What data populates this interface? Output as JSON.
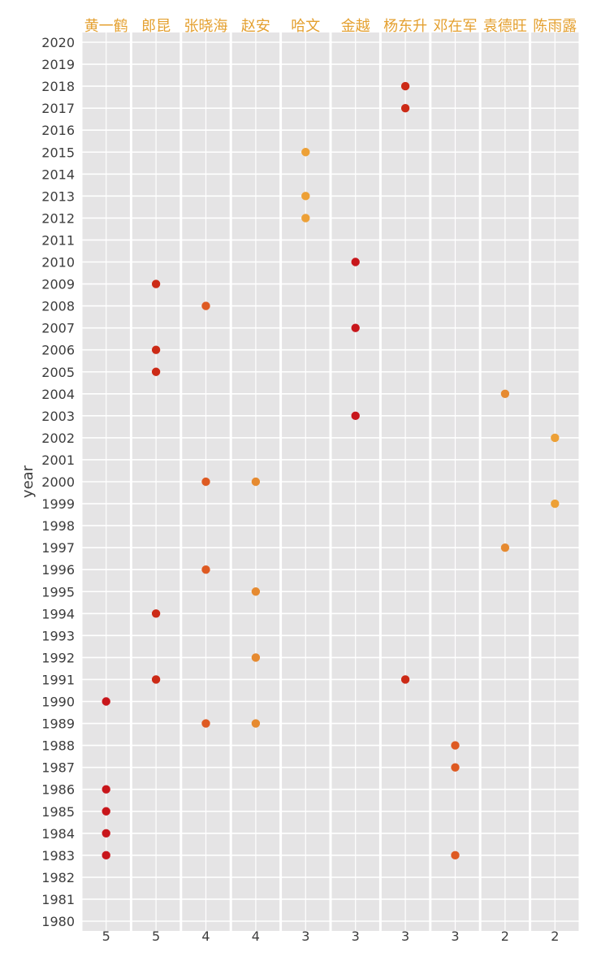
{
  "chart_data": {
    "type": "scatter",
    "ylabel": "year",
    "ylim": [
      1980,
      2020
    ],
    "y_ticks": [
      1980,
      1981,
      1982,
      1983,
      1984,
      1985,
      1986,
      1987,
      1988,
      1989,
      1990,
      1991,
      1992,
      1993,
      1994,
      1995,
      1996,
      1997,
      1998,
      1999,
      2000,
      2001,
      2002,
      2003,
      2004,
      2005,
      2006,
      2007,
      2008,
      2009,
      2010,
      2011,
      2012,
      2013,
      2014,
      2015,
      2016,
      2017,
      2018,
      2019,
      2020
    ],
    "grid": true,
    "series": [
      {
        "name": "黄一鹤",
        "count": "5",
        "color": "#c8161b",
        "years": [
          1983,
          1984,
          1985,
          1986,
          1990
        ]
      },
      {
        "name": "郎昆",
        "count": "5",
        "color": "#cc2a16",
        "years": [
          1991,
          1994,
          2005,
          2006,
          2009
        ]
      },
      {
        "name": "张晓海",
        "count": "4",
        "color": "#de5a22",
        "years": [
          1989,
          1996,
          2000,
          2008
        ]
      },
      {
        "name": "赵安",
        "count": "4",
        "color": "#e68a30",
        "years": [
          1989,
          1992,
          1995,
          2000
        ]
      },
      {
        "name": "哈文",
        "count": "3",
        "color": "#eda036",
        "years": [
          2012,
          2013,
          2015
        ]
      },
      {
        "name": "金越",
        "count": "3",
        "color": "#c8161b",
        "years": [
          2003,
          2007,
          2010
        ]
      },
      {
        "name": "杨东升",
        "count": "3",
        "color": "#cc2a16",
        "years": [
          1991,
          2017,
          2018
        ]
      },
      {
        "name": "邓在军",
        "count": "3",
        "color": "#de5a22",
        "years": [
          1983,
          1987,
          1988
        ]
      },
      {
        "name": "袁德旺",
        "count": "2",
        "color": "#e68a30",
        "years": [
          1997,
          2004
        ]
      },
      {
        "name": "陈雨露",
        "count": "2",
        "color": "#eda036",
        "years": [
          1999,
          2002
        ]
      }
    ]
  },
  "colors": {
    "panel": "#e5e4e5",
    "grid": "#ffffff",
    "header_label": "#e4a030",
    "text": "#3d3d3d"
  }
}
